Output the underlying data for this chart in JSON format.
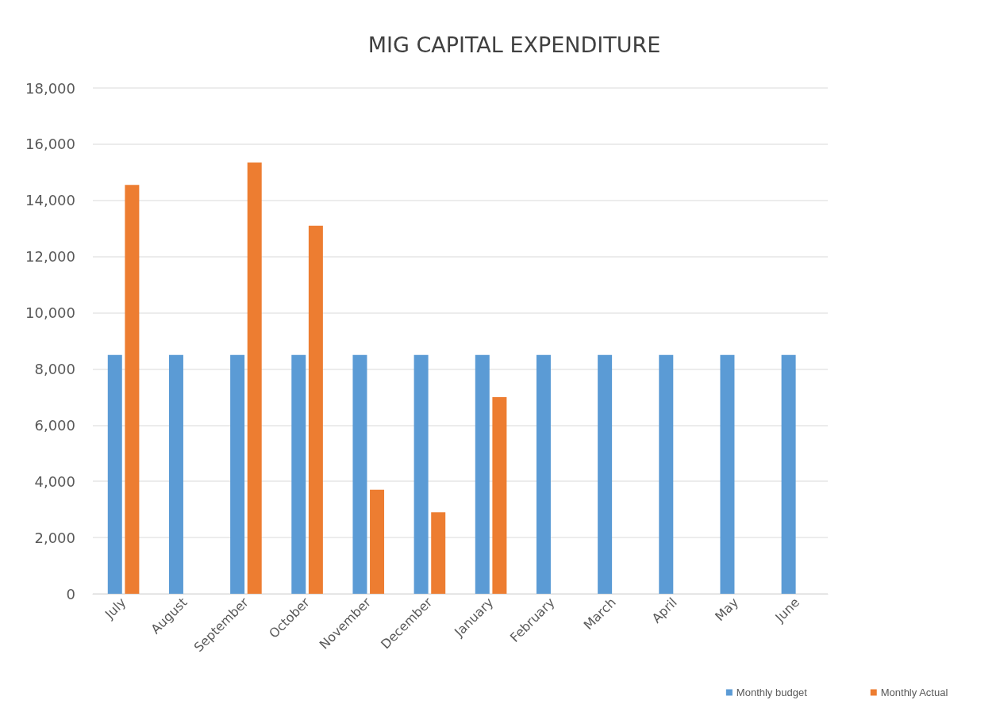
{
  "chart_data": {
    "type": "bar",
    "title": "MIG CAPITAL EXPENDITURE",
    "categories": [
      "July",
      "August",
      "September",
      "October",
      "November",
      "December",
      "January",
      "February",
      "March",
      "April",
      "May",
      "June"
    ],
    "series": [
      {
        "name": "Monthly budget",
        "color": "#5b9bd5",
        "values": [
          8500,
          8500,
          8500,
          8500,
          8500,
          8500,
          8500,
          8500,
          8500,
          8500,
          8500,
          8500
        ]
      },
      {
        "name": "Monthly Actual",
        "color": "#ed7d31",
        "values": [
          14550,
          null,
          15350,
          13100,
          3700,
          2900,
          7000,
          null,
          null,
          null,
          null,
          null
        ]
      }
    ],
    "ylim": [
      0,
      18000
    ],
    "yticks": [
      0,
      {
        "value": 2000,
        "label": "2,000"
      },
      {
        "value": 4000,
        "label": "4,000"
      },
      {
        "value": 6000,
        "label": "6,000"
      },
      {
        "value": 8000,
        "label": "8,000"
      },
      {
        "value": 10000,
        "label": "10,000"
      },
      {
        "value": 12000,
        "label": "12,000"
      },
      {
        "value": 14000,
        "label": "14,000"
      },
      {
        "value": 16000,
        "label": "16,000"
      },
      {
        "value": 18000,
        "label": "18,000"
      }
    ],
    "grid": "y",
    "legend": "bottom right"
  }
}
